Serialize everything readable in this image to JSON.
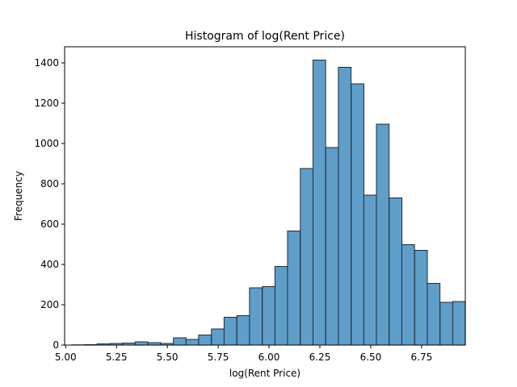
{
  "chart_data": {
    "type": "bar",
    "title": "Histogram of log(Rent Price)",
    "xlabel": "log(Rent Price)",
    "ylabel": "Frequency",
    "xlim": [
      4.995,
      6.965
    ],
    "ylim": [
      0,
      1480
    ],
    "xticks": [
      "5.00",
      "5.25",
      "5.50",
      "5.75",
      "6.00",
      "6.25",
      "6.50",
      "6.75"
    ],
    "xtick_values": [
      5.0,
      5.25,
      5.5,
      5.75,
      6.0,
      6.25,
      6.5,
      6.75
    ],
    "yticks": [
      "0",
      "200",
      "400",
      "600",
      "800",
      "1000",
      "1200",
      "1400"
    ],
    "ytick_values": [
      0,
      200,
      400,
      600,
      800,
      1000,
      1200,
      1400
    ],
    "bin_width": 0.0624,
    "bins": [
      {
        "x0": 5.03,
        "count": 1
      },
      {
        "x0": 5.092,
        "count": 2
      },
      {
        "x0": 5.155,
        "count": 6
      },
      {
        "x0": 5.217,
        "count": 8
      },
      {
        "x0": 5.28,
        "count": 10
      },
      {
        "x0": 5.342,
        "count": 16
      },
      {
        "x0": 5.405,
        "count": 12
      },
      {
        "x0": 5.467,
        "count": 8
      },
      {
        "x0": 5.53,
        "count": 36
      },
      {
        "x0": 5.592,
        "count": 28
      },
      {
        "x0": 5.654,
        "count": 50
      },
      {
        "x0": 5.717,
        "count": 80
      },
      {
        "x0": 5.779,
        "count": 138
      },
      {
        "x0": 5.842,
        "count": 146
      },
      {
        "x0": 5.904,
        "count": 284
      },
      {
        "x0": 5.967,
        "count": 290
      },
      {
        "x0": 6.029,
        "count": 390
      },
      {
        "x0": 6.091,
        "count": 566
      },
      {
        "x0": 6.154,
        "count": 876
      },
      {
        "x0": 6.216,
        "count": 1414
      },
      {
        "x0": 6.279,
        "count": 980
      },
      {
        "x0": 6.341,
        "count": 1378
      },
      {
        "x0": 6.404,
        "count": 1296
      },
      {
        "x0": 6.466,
        "count": 744
      },
      {
        "x0": 6.528,
        "count": 1096
      },
      {
        "x0": 6.591,
        "count": 730
      },
      {
        "x0": 6.653,
        "count": 498
      },
      {
        "x0": 6.716,
        "count": 470
      },
      {
        "x0": 6.778,
        "count": 306
      },
      {
        "x0": 6.841,
        "count": 212
      },
      {
        "x0": 6.903,
        "count": 216
      }
    ],
    "bar_color": "#5f9ec9",
    "edge_color": "#1f2a36",
    "grid": false,
    "legend": "none"
  }
}
